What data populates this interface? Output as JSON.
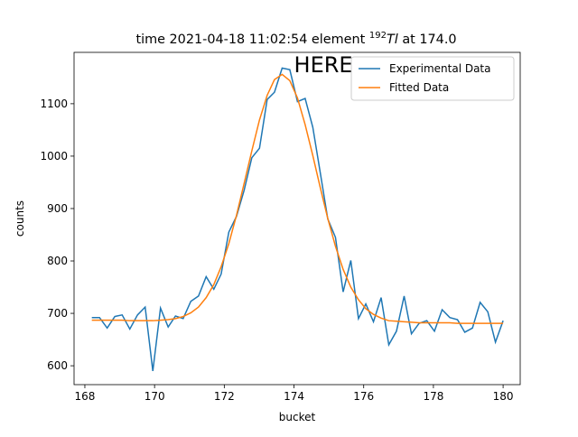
{
  "chart_data": {
    "type": "line",
    "title": {
      "prefix": "time 2021-04-18 11:02:54 element ",
      "mass": "192",
      "symbol": "Tl",
      "suffix": " at 174.0"
    },
    "x_label": "bucket",
    "y_label": "counts",
    "x": [
      168.2,
      168.42,
      168.64,
      168.86,
      169.07,
      169.29,
      169.51,
      169.73,
      169.95,
      170.17,
      170.39,
      170.6,
      170.82,
      171.04,
      171.26,
      171.48,
      171.7,
      171.91,
      172.13,
      172.35,
      172.57,
      172.79,
      173.01,
      173.23,
      173.44,
      173.66,
      173.88,
      174.1,
      174.32,
      174.54,
      174.75,
      174.97,
      175.19,
      175.41,
      175.63,
      175.85,
      176.06,
      176.28,
      176.5,
      176.72,
      176.94,
      177.16,
      177.37,
      177.59,
      177.81,
      178.03,
      178.25,
      178.47,
      178.69,
      178.9,
      179.12,
      179.34,
      179.56,
      179.78,
      180.0
    ],
    "series": [
      {
        "name": "Experimental Data",
        "color": "#1f77b4",
        "values": [
          692,
          692,
          672,
          694,
          697,
          670,
          697,
          712,
          590,
          710,
          674,
          695,
          690,
          723,
          733,
          770,
          746,
          775,
          855,
          885,
          935,
          997,
          1015,
          1108,
          1122,
          1168,
          1165,
          1104,
          1110,
          1055,
          970,
          880,
          845,
          741,
          801,
          690,
          718,
          684,
          730,
          640,
          666,
          733,
          661,
          681,
          686,
          666,
          707,
          692,
          688,
          664,
          672,
          721,
          703,
          645,
          686
        ]
      },
      {
        "name": "Fitted Data",
        "color": "#ff7f0e",
        "values": [
          687,
          687,
          687,
          687,
          687,
          686,
          686,
          686,
          686,
          687,
          688,
          690,
          694,
          701,
          712,
          730,
          755,
          789,
          833,
          887,
          948,
          1010,
          1069,
          1116,
          1146,
          1156,
          1144,
          1111,
          1060,
          1001,
          941,
          881,
          828,
          784,
          750,
          726,
          709,
          698,
          691,
          686,
          685,
          684,
          683,
          682,
          682,
          682,
          682,
          682,
          681,
          681,
          681,
          681,
          681,
          681,
          681
        ]
      }
    ],
    "xlim": [
      167.69,
      180.49
    ],
    "ylim": [
      564,
      1198
    ],
    "xticks": [
      168,
      170,
      172,
      174,
      176,
      178,
      180
    ],
    "yticks": [
      600,
      700,
      800,
      900,
      1000,
      1100
    ],
    "legend": "upper right",
    "annotation": {
      "text": "HERE",
      "x": 174,
      "y": 1160,
      "color": "#ff0000"
    }
  }
}
